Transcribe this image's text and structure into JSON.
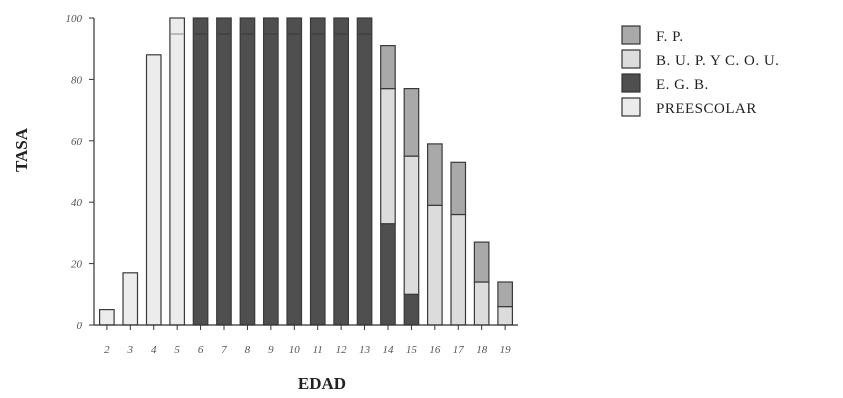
{
  "chart_data": {
    "type": "bar",
    "stacked": true,
    "xlabel": "EDAD",
    "ylabel": "TASA",
    "ylim": [
      0,
      100
    ],
    "yticks": [
      0,
      20,
      40,
      60,
      80,
      100
    ],
    "categories": [
      "2",
      "3",
      "4",
      "5",
      "6",
      "7",
      "8",
      "9",
      "10",
      "11",
      "12",
      "13",
      "14",
      "15",
      "16",
      "17",
      "18",
      "19"
    ],
    "series": [
      {
        "name": "PREESCOLAR",
        "color": "#ececec",
        "values": [
          5,
          17,
          88,
          100,
          0,
          0,
          0,
          0,
          0,
          0,
          0,
          0,
          0,
          0,
          0,
          0,
          0,
          0
        ]
      },
      {
        "name": "E. G. B.",
        "color": "#4f4f4f",
        "values": [
          0,
          0,
          0,
          0,
          100,
          100,
          100,
          100,
          100,
          100,
          100,
          100,
          33,
          10,
          0,
          0,
          0,
          0
        ]
      },
      {
        "name": "B. U. P. Y C. O. U.",
        "color": "#dcdcdc",
        "values": [
          0,
          0,
          0,
          0,
          0,
          0,
          0,
          0,
          0,
          0,
          0,
          0,
          44,
          45,
          39,
          36,
          14,
          6
        ]
      },
      {
        "name": "F. P.",
        "color": "#a9a9a9",
        "values": [
          0,
          0,
          0,
          0,
          0,
          0,
          0,
          0,
          0,
          0,
          0,
          0,
          14,
          22,
          20,
          17,
          13,
          8
        ]
      }
    ],
    "legend": {
      "position": "top-right",
      "order": [
        "F. P.",
        "B. U. P. Y C. O. U.",
        "E. G. B.",
        "PREESCOLAR"
      ]
    },
    "grid": false
  }
}
